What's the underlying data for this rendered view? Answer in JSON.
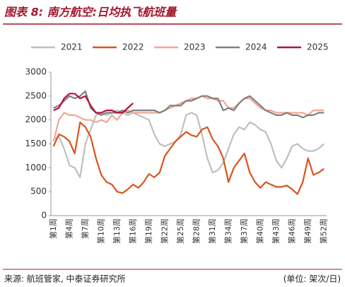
{
  "chart_data": {
    "type": "line",
    "title": "图表 8: 南方航空:日均执飞航班量",
    "source": "来源: 航班管家, 中泰证券研究所",
    "unit": "(单位: 架次/日)",
    "categories": [
      "第1周",
      null,
      null,
      "第4周",
      null,
      null,
      "第7周",
      null,
      null,
      "第10周",
      null,
      null,
      "第13周",
      null,
      null,
      "第16周",
      null,
      null,
      "第19周",
      null,
      null,
      "第22周",
      null,
      null,
      "第25周",
      null,
      null,
      "第28周",
      null,
      null,
      "第31周",
      null,
      null,
      "第34周",
      null,
      null,
      "第37周",
      null,
      null,
      "第40周",
      null,
      null,
      "第43周",
      null,
      null,
      "第46周",
      null,
      null,
      "第49周",
      null,
      null,
      "第52周"
    ],
    "ylim": [
      0,
      3000
    ],
    "yticks": [
      0,
      500,
      1000,
      1500,
      2000,
      2500,
      3000
    ],
    "series": [
      {
        "name": "2021",
        "color": "#bfbfbf",
        "values": [
          1600,
          1650,
          1400,
          1050,
          1000,
          800,
          1500,
          1800,
          2100,
          2150,
          2100,
          2150,
          2200,
          2150,
          2100,
          2150,
          2100,
          2050,
          2000,
          1700,
          1500,
          1450,
          1500,
          1550,
          1700,
          2100,
          2150,
          2100,
          1700,
          1200,
          900,
          950,
          1100,
          1400,
          1700,
          1850,
          1800,
          1950,
          1900,
          1800,
          1750,
          1500,
          1150,
          1000,
          1200,
          1450,
          1500,
          1400,
          1350,
          1350,
          1400,
          1500
        ]
      },
      {
        "name": "2022",
        "color": "#d9541e",
        "values": [
          1450,
          1700,
          1650,
          1550,
          1300,
          1950,
          1850,
          1650,
          1200,
          850,
          700,
          650,
          500,
          470,
          550,
          650,
          580,
          700,
          870,
          800,
          900,
          1250,
          1400,
          1550,
          1650,
          1750,
          1680,
          1650,
          1800,
          1850,
          1600,
          1450,
          1200,
          700,
          1000,
          1150,
          1300,
          900,
          700,
          580,
          700,
          650,
          600,
          600,
          630,
          550,
          450,
          700,
          1200,
          850,
          900,
          980
        ]
      },
      {
        "name": "2023",
        "color": "#f4a591",
        "values": [
          1550,
          2000,
          2150,
          2100,
          2100,
          2050,
          2000,
          2000,
          1950,
          2000,
          1950,
          2100,
          2000,
          2150,
          2200,
          2150,
          2150,
          2150,
          2150,
          2150,
          2150,
          2200,
          2250,
          2300,
          2350,
          2400,
          2450,
          2450,
          2500,
          2450,
          2450,
          2400,
          2400,
          2250,
          2250,
          2350,
          2450,
          2450,
          2350,
          2250,
          2200,
          2200,
          2150,
          2150,
          2150,
          2150,
          2150,
          2150,
          2100,
          2200,
          2200,
          2200
        ]
      },
      {
        "name": "2024",
        "color": "#7f7f7f",
        "values": [
          2250,
          2300,
          2400,
          2500,
          2450,
          2500,
          2600,
          2250,
          2150,
          2100,
          2150,
          2150,
          2150,
          2200,
          2150,
          2200,
          2200,
          2200,
          2200,
          2200,
          2150,
          2200,
          2300,
          2300,
          2300,
          2400,
          2400,
          2450,
          2500,
          2500,
          2450,
          2450,
          2200,
          2250,
          2200,
          2350,
          2450,
          2500,
          2400,
          2300,
          2200,
          2150,
          2100,
          2100,
          2150,
          2100,
          2100,
          2050,
          2100,
          2100,
          2150,
          2150
        ]
      },
      {
        "name": "2025",
        "color": "#b5123a",
        "values": [
          2200,
          2250,
          2450,
          2550,
          2550,
          2450,
          2500,
          2300,
          2150,
          2150,
          2200,
          2200,
          2150,
          2150,
          2250,
          2350,
          null,
          null,
          null,
          null,
          null,
          null,
          null,
          null,
          null,
          null,
          null,
          null,
          null,
          null,
          null,
          null,
          null,
          null,
          null,
          null,
          null,
          null,
          null,
          null,
          null,
          null,
          null,
          null,
          null,
          null,
          null,
          null,
          null,
          null,
          null,
          null
        ]
      }
    ]
  }
}
